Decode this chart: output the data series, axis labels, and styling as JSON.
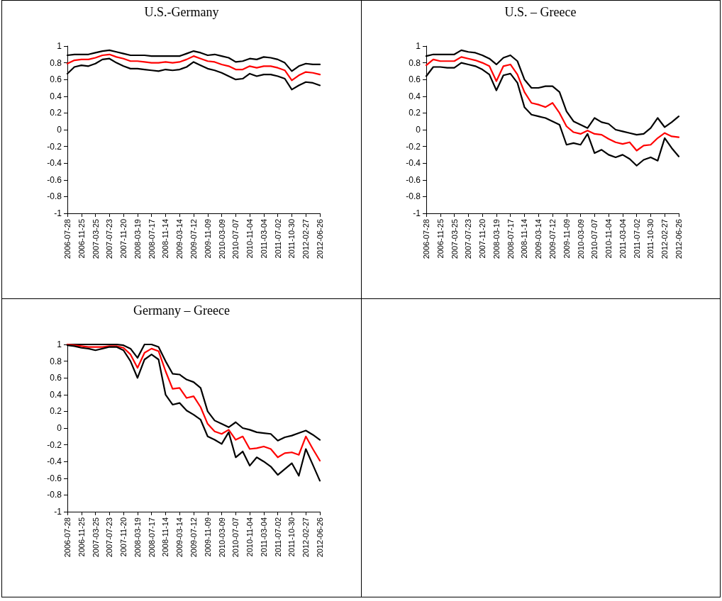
{
  "chart_data": [
    {
      "type": "line",
      "title": "U.S.-Germany",
      "x": [
        "2006-07-28",
        "2006-09-26",
        "2006-11-25",
        "2007-01-24",
        "2007-03-25",
        "2007-05-24",
        "2007-07-23",
        "2007-09-21",
        "2007-11-20",
        "2008-01-19",
        "2008-03-19",
        "2008-05-18",
        "2008-07-17",
        "2008-09-15",
        "2008-11-14",
        "2009-01-13",
        "2009-03-14",
        "2009-05-13",
        "2009-07-12",
        "2009-09-10",
        "2009-11-09",
        "2010-01-08",
        "2010-03-09",
        "2010-05-08",
        "2010-07-07",
        "2010-09-05",
        "2010-11-04",
        "2011-01-03",
        "2011-03-04",
        "2011-05-03",
        "2011-07-02",
        "2011-08-31",
        "2011-10-30",
        "2011-12-29",
        "2012-02-27",
        "2012-04-27",
        "2012-06-26"
      ],
      "xlim": [
        "2006-07-28",
        "2012-06-26"
      ],
      "xticks": [
        "2006-07-28",
        "2006-11-25",
        "2007-03-25",
        "2007-07-23",
        "2007-11-20",
        "2008-03-19",
        "2008-07-17",
        "2008-11-14",
        "2009-03-14",
        "2009-07-12",
        "2009-11-09",
        "2010-03-09",
        "2010-07-07",
        "2010-11-04",
        "2011-03-04",
        "2011-07-02",
        "2011-10-30",
        "2012-02-27",
        "2012-06-26"
      ],
      "ylim": [
        -1,
        1
      ],
      "yticks": [
        -1,
        -0.8,
        -0.6,
        -0.4,
        -0.2,
        0,
        0.2,
        0.4,
        0.6,
        0.8,
        1
      ],
      "series": [
        {
          "color": "#000000",
          "values": [
            0.89,
            0.9,
            0.9,
            0.9,
            0.92,
            0.94,
            0.95,
            0.93,
            0.91,
            0.89,
            0.89,
            0.89,
            0.88,
            0.88,
            0.88,
            0.88,
            0.88,
            0.91,
            0.94,
            0.92,
            0.89,
            0.9,
            0.88,
            0.86,
            0.81,
            0.82,
            0.85,
            0.84,
            0.87,
            0.86,
            0.84,
            0.8,
            0.7,
            0.76,
            0.79,
            0.78,
            0.78
          ]
        },
        {
          "color": "#ff0000",
          "values": [
            0.79,
            0.83,
            0.84,
            0.84,
            0.86,
            0.89,
            0.9,
            0.87,
            0.85,
            0.82,
            0.82,
            0.81,
            0.8,
            0.8,
            0.81,
            0.8,
            0.81,
            0.84,
            0.88,
            0.85,
            0.82,
            0.81,
            0.78,
            0.76,
            0.72,
            0.72,
            0.76,
            0.74,
            0.76,
            0.76,
            0.74,
            0.71,
            0.59,
            0.65,
            0.69,
            0.68,
            0.66
          ]
        },
        {
          "color": "#000000",
          "values": [
            0.67,
            0.75,
            0.77,
            0.76,
            0.79,
            0.84,
            0.85,
            0.8,
            0.76,
            0.73,
            0.73,
            0.72,
            0.71,
            0.7,
            0.72,
            0.71,
            0.72,
            0.75,
            0.81,
            0.77,
            0.73,
            0.71,
            0.68,
            0.64,
            0.6,
            0.61,
            0.67,
            0.64,
            0.66,
            0.66,
            0.64,
            0.61,
            0.48,
            0.53,
            0.57,
            0.56,
            0.53
          ]
        }
      ]
    },
    {
      "type": "line",
      "title": "U.S. – Greece",
      "x": [
        "2006-07-28",
        "2006-09-26",
        "2006-11-25",
        "2007-01-24",
        "2007-03-25",
        "2007-05-24",
        "2007-07-23",
        "2007-09-21",
        "2007-11-20",
        "2008-01-19",
        "2008-03-19",
        "2008-05-18",
        "2008-07-17",
        "2008-09-15",
        "2008-11-14",
        "2009-01-13",
        "2009-03-14",
        "2009-05-13",
        "2009-07-12",
        "2009-09-10",
        "2009-11-09",
        "2010-01-08",
        "2010-03-09",
        "2010-05-08",
        "2010-07-07",
        "2010-09-05",
        "2010-11-04",
        "2011-01-03",
        "2011-03-04",
        "2011-05-03",
        "2011-07-02",
        "2011-08-31",
        "2011-10-30",
        "2011-12-29",
        "2012-02-27",
        "2012-04-27",
        "2012-06-26"
      ],
      "xlim": [
        "2006-07-28",
        "2012-06-26"
      ],
      "xticks": [
        "2006-07-28",
        "2006-11-25",
        "2007-03-25",
        "2007-07-23",
        "2007-11-20",
        "2008-03-19",
        "2008-07-17",
        "2008-11-14",
        "2009-03-14",
        "2009-07-12",
        "2009-11-09",
        "2010-03-09",
        "2010-07-07",
        "2010-11-04",
        "2011-03-04",
        "2011-07-02",
        "2011-10-30",
        "2012-02-27",
        "2012-06-26"
      ],
      "ylim": [
        -1,
        1
      ],
      "yticks": [
        -1,
        -0.8,
        -0.6,
        -0.4,
        -0.2,
        0,
        0.2,
        0.4,
        0.6,
        0.8,
        1
      ],
      "series": [
        {
          "color": "#000000",
          "values": [
            0.88,
            0.9,
            0.9,
            0.9,
            0.9,
            0.95,
            0.93,
            0.92,
            0.89,
            0.85,
            0.78,
            0.86,
            0.89,
            0.82,
            0.6,
            0.5,
            0.5,
            0.52,
            0.52,
            0.45,
            0.22,
            0.1,
            0.06,
            0.02,
            0.14,
            0.09,
            0.07,
            0,
            -0.02,
            -0.04,
            -0.06,
            -0.05,
            0.02,
            0.14,
            0.03,
            0.09,
            0.16
          ]
        },
        {
          "color": "#ff0000",
          "values": [
            0.77,
            0.84,
            0.82,
            0.82,
            0.82,
            0.87,
            0.85,
            0.83,
            0.8,
            0.76,
            0.58,
            0.76,
            0.78,
            0.66,
            0.45,
            0.32,
            0.3,
            0.27,
            0.32,
            0.2,
            0.04,
            -0.03,
            -0.05,
            -0.01,
            -0.05,
            -0.06,
            -0.11,
            -0.15,
            -0.17,
            -0.15,
            -0.25,
            -0.19,
            -0.18,
            -0.1,
            -0.04,
            -0.08,
            -0.09
          ]
        },
        {
          "color": "#000000",
          "values": [
            0.64,
            0.75,
            0.75,
            0.74,
            0.74,
            0.8,
            0.78,
            0.76,
            0.72,
            0.66,
            0.47,
            0.65,
            0.67,
            0.56,
            0.27,
            0.18,
            0.16,
            0.14,
            0.1,
            0.06,
            -0.18,
            -0.16,
            -0.18,
            -0.05,
            -0.28,
            -0.24,
            -0.3,
            -0.33,
            -0.3,
            -0.35,
            -0.43,
            -0.36,
            -0.33,
            -0.37,
            -0.1,
            -0.22,
            -0.32
          ]
        }
      ]
    },
    {
      "type": "line",
      "title": "Germany – Greece",
      "x": [
        "2006-07-28",
        "2006-09-26",
        "2006-11-25",
        "2007-01-24",
        "2007-03-25",
        "2007-05-24",
        "2007-07-23",
        "2007-09-21",
        "2007-11-20",
        "2008-01-19",
        "2008-03-19",
        "2008-05-18",
        "2008-07-17",
        "2008-09-15",
        "2008-11-14",
        "2009-01-13",
        "2009-03-14",
        "2009-05-13",
        "2009-07-12",
        "2009-09-10",
        "2009-11-09",
        "2010-01-08",
        "2010-03-09",
        "2010-05-08",
        "2010-07-07",
        "2010-09-05",
        "2010-11-04",
        "2011-01-03",
        "2011-03-04",
        "2011-05-03",
        "2011-07-02",
        "2011-08-31",
        "2011-10-30",
        "2011-12-29",
        "2012-02-27",
        "2012-04-27",
        "2012-06-26"
      ],
      "xlim": [
        "2006-07-28",
        "2012-06-26"
      ],
      "xticks": [
        "2006-07-28",
        "2006-11-25",
        "2007-03-25",
        "2007-07-23",
        "2007-11-20",
        "2008-03-19",
        "2008-07-17",
        "2008-11-14",
        "2009-03-14",
        "2009-07-12",
        "2009-11-09",
        "2010-03-09",
        "2010-07-07",
        "2010-11-04",
        "2011-03-04",
        "2011-07-02",
        "2011-10-30",
        "2012-02-27",
        "2012-06-26"
      ],
      "ylim": [
        -1,
        1
      ],
      "yticks": [
        -1,
        -0.8,
        -0.6,
        -0.4,
        -0.2,
        0,
        0.2,
        0.4,
        0.6,
        0.8,
        1
      ],
      "series": [
        {
          "color": "#000000",
          "values": [
            1,
            1,
            1,
            1,
            1,
            1,
            1,
            1,
            0.99,
            0.95,
            0.84,
            1,
            1,
            0.97,
            0.8,
            0.65,
            0.64,
            0.58,
            0.55,
            0.48,
            0.2,
            0.09,
            0.05,
            0.01,
            0.07,
            0,
            -0.02,
            -0.05,
            -0.06,
            -0.07,
            -0.15,
            -0.11,
            -0.09,
            -0.06,
            -0.03,
            -0.08,
            -0.14
          ]
        },
        {
          "color": "#ff0000",
          "values": [
            1,
            0.99,
            0.98,
            0.97,
            0.97,
            0.97,
            0.98,
            0.98,
            0.96,
            0.88,
            0.72,
            0.9,
            0.95,
            0.92,
            0.68,
            0.47,
            0.48,
            0.36,
            0.38,
            0.25,
            0.05,
            -0.04,
            -0.07,
            -0.02,
            -0.14,
            -0.1,
            -0.25,
            -0.24,
            -0.22,
            -0.25,
            -0.35,
            -0.3,
            -0.29,
            -0.32,
            -0.1,
            -0.25,
            -0.39
          ]
        },
        {
          "color": "#000000",
          "values": [
            0.99,
            0.98,
            0.96,
            0.95,
            0.93,
            0.95,
            0.97,
            0.97,
            0.93,
            0.8,
            0.6,
            0.82,
            0.88,
            0.82,
            0.4,
            0.28,
            0.3,
            0.21,
            0.16,
            0.1,
            -0.1,
            -0.14,
            -0.19,
            -0.05,
            -0.35,
            -0.28,
            -0.45,
            -0.35,
            -0.4,
            -0.46,
            -0.56,
            -0.49,
            -0.42,
            -0.57,
            -0.25,
            -0.44,
            -0.63
          ]
        }
      ]
    }
  ]
}
